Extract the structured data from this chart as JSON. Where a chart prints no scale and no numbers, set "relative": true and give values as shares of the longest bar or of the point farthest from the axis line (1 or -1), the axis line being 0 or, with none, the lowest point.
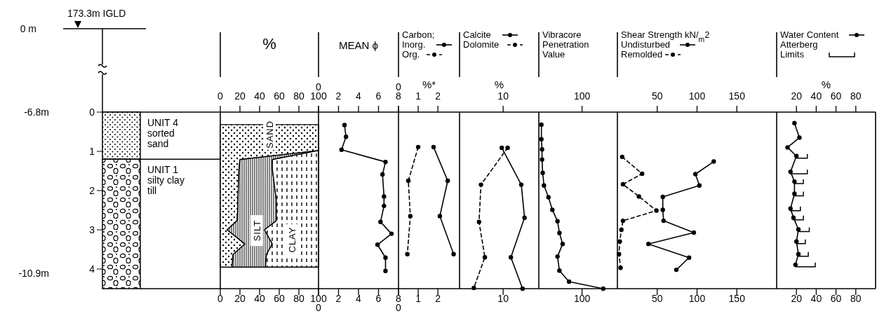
{
  "chart_data": [
    {
      "type": "bar",
      "stacked": true,
      "categories": [
        null
      ],
      "ylim": [
        4.5,
        0
      ],
      "yticks": [
        0,
        1,
        2,
        3,
        4
      ],
      "y2lim": [
        -11.3,
        -6.8
      ],
      "y2ticks": [
        {
          "value": -6.8,
          "label": "-6.8m"
        },
        {
          "value": -10.9,
          "label": "-10.9m"
        }
      ],
      "annotations": [
        "173.3m IGLD",
        "0 m"
      ],
      "series": [
        {
          "name": "UNIT 4\nsorted\nsand",
          "color": "#000000",
          "values": [
            1.2
          ]
        },
        {
          "name": "UNIT 1\nsilty clay\ntill",
          "color": "#000000",
          "values": [
            3.3
          ]
        }
      ]
    },
    {
      "type": "area",
      "stacked": true,
      "orientation": "horizontal",
      "title": "%",
      "xlim": [
        0,
        100
      ],
      "xticks": [
        0,
        20,
        40,
        60,
        80,
        100
      ],
      "x2lim": [
        0,
        100
      ],
      "x2ticks": [
        0,
        20,
        40,
        60,
        80,
        100
      ],
      "ylim": [
        4.5,
        0
      ],
      "tick_labels": "x",
      "x": [
        0.32,
        0.64,
        0.98,
        1.21,
        1.45,
        2.23,
        2.43,
        2.77,
        3.0,
        3.36,
        3.63,
        3.95
      ],
      "series": [
        {
          "name": "SAND",
          "color": "#000000",
          "values": [
            100,
            100,
            100,
            20,
            19,
            18,
            18,
            17,
            7,
            25,
            13,
            12
          ]
        },
        {
          "name": "SILT",
          "color": "#000000",
          "values": [
            0,
            0,
            0,
            33,
            34,
            39,
            39,
            40,
            38,
            28,
            34,
            34
          ]
        },
        {
          "name": "CLAY",
          "color": "#000000",
          "values": [
            0,
            0,
            0,
            47,
            47,
            43,
            43,
            43,
            55,
            47,
            53,
            54
          ]
        }
      ]
    },
    {
      "type": "line",
      "orientation": "horizontal",
      "title": "MEAN ϕ",
      "annotations": [
        "0",
        "0"
      ],
      "xlim": [
        0,
        8
      ],
      "xticks": [
        {
          "value": 0,
          "label": null
        },
        2,
        4,
        6,
        8
      ],
      "x2lim": [
        0,
        8
      ],
      "x2ticks": [
        {
          "value": 0,
          "label": null
        },
        2,
        4,
        6,
        8
      ],
      "ylim": [
        4.5,
        0
      ],
      "tick_labels": "x",
      "marker": "circle",
      "line_style": "solid",
      "x": [
        0.33,
        0.63,
        0.96,
        1.27,
        1.59,
        2.15,
        2.39,
        2.8,
        3.1,
        3.38,
        3.71,
        4.05
      ],
      "series": [
        {
          "color": "#000000",
          "values": [
            2.6,
            2.75,
            2.3,
            6.7,
            6.4,
            6.55,
            6.55,
            6.2,
            7.3,
            5.9,
            6.7,
            6.7
          ]
        }
      ]
    },
    {
      "type": "line",
      "orientation": "horizontal",
      "title": "Carbon;",
      "xlabel": "%*",
      "legend": "top",
      "annotations": [
        "0",
        "0"
      ],
      "xlim": [
        0,
        3.1
      ],
      "xticks": [
        {
          "value": 0,
          "label": null
        },
        1,
        2
      ],
      "x2lim": [
        0,
        3.1
      ],
      "x2ticks": [
        {
          "value": 0,
          "label": null
        },
        1,
        2
      ],
      "ylim": [
        4.5,
        0
      ],
      "tick_labels": "x",
      "marker": "circle",
      "x": [
        0.89,
        1.75,
        2.65,
        3.62
      ],
      "series": [
        {
          "name": "Inorg.",
          "color": "#000000",
          "line_style": "solid",
          "values": [
            1.78,
            2.5,
            2.1,
            2.8
          ]
        },
        {
          "name": "Org.",
          "color": "#000000",
          "line_style": "dashed",
          "values": [
            1.0,
            0.5,
            0.6,
            0.45
          ]
        }
      ]
    },
    {
      "type": "line",
      "orientation": "horizontal",
      "relative": true,
      "xlabel": "%",
      "legend": "top",
      "annotations": [
        "10",
        "10"
      ],
      "ylim": [
        4.5,
        0
      ],
      "marker": "circle",
      "series": [
        {
          "name": "Calcite",
          "color": "#000000",
          "line_style": "solid",
          "x": [
            0.91,
            1.85,
            2.69,
            3.7,
            4.5
          ],
          "values": [
            0.65,
            0.95,
            1,
            0.79,
            0.97
          ]
        },
        {
          "name": "Dolomite",
          "color": "#000000",
          "line_style": "dashed",
          "x": [
            0.91,
            1.85,
            2.8,
            3.7,
            4.48
          ],
          "values": [
            0.74,
            0.33,
            0.3,
            0.39,
            0.22
          ]
        }
      ]
    },
    {
      "type": "line",
      "orientation": "horizontal",
      "relative": true,
      "title": "Vibracore\nPenetration\nValue",
      "annotations": [
        "100",
        "100"
      ],
      "ylim": [
        4.5,
        0
      ],
      "marker": "circle",
      "line_style": "solid",
      "x": [
        0.32,
        0.69,
        0.95,
        1.21,
        1.55,
        1.87,
        2.17,
        2.49,
        2.78,
        3.08,
        3.36,
        3.68,
        4.04,
        4.32,
        4.5
      ],
      "series": [
        {
          "color": "#000000",
          "values": [
            0.04,
            0.04,
            0.05,
            0.05,
            0.06,
            0.08,
            0.15,
            0.21,
            0.29,
            0.32,
            0.37,
            0.29,
            0.32,
            0.47,
            1
          ]
        }
      ]
    },
    {
      "type": "line",
      "orientation": "horizontal",
      "title": "Shear Strength  kN/$_{m}$2",
      "legend": "top",
      "xlim": [
        0,
        200
      ],
      "xticks": [
        50,
        100,
        150
      ],
      "x2lim": [
        0,
        200
      ],
      "x2ticks": [
        50,
        100,
        150
      ],
      "ylim": [
        4.5,
        0
      ],
      "tick_labels": "x",
      "marker": "circle",
      "series": [
        {
          "name": "Undisturbed",
          "color": "#000000",
          "line_style": "solid",
          "x": [
            1.26,
            1.58,
            1.87,
            2.16,
            2.49,
            2.77,
            3.07,
            3.36,
            3.71,
            4.02
          ],
          "values": [
            121,
            98,
            103,
            57,
            57,
            58,
            96,
            39,
            90,
            74
          ]
        },
        {
          "name": "Remolded",
          "color": "#000000",
          "line_style": "dashed",
          "x": [
            1.14,
            1.57,
            1.84,
            2.15,
            2.51,
            2.77,
            3.0,
            3.3,
            3.62,
            3.97
          ],
          "values": [
            6,
            31,
            7,
            27,
            49,
            7,
            5,
            3,
            2,
            4
          ]
        }
      ]
    },
    {
      "type": "line",
      "orientation": "horizontal",
      "xlabel": "%",
      "legend": "top",
      "xlim": [
        0,
        100
      ],
      "xticks": [
        20,
        40,
        60,
        80
      ],
      "x2lim": [
        0,
        100
      ],
      "x2ticks": [
        20,
        40,
        60,
        80
      ],
      "ylim": [
        4.5,
        0
      ],
      "tick_labels": "x",
      "marker": "circle",
      "series": [
        {
          "name": "Water Content",
          "color": "#000000",
          "line_style": "solid",
          "x": [
            0.28,
            0.65,
            0.9,
            1.12,
            1.52,
            1.77,
            2.08,
            2.46,
            2.69,
            2.99,
            3.3,
            3.62,
            3.89
          ],
          "values": [
            18,
            23,
            11,
            20,
            14,
            18,
            18,
            14,
            17,
            22,
            20,
            22,
            19
          ]
        },
        {
          "name": "Atterberg\nLimits",
          "type": "bar",
          "color": "#000000",
          "x": [
            1.12,
            1.52,
            1.77,
            2.08,
            2.46,
            2.69,
            2.99,
            3.3,
            3.62,
            3.89
          ],
          "base": [
            20,
            14,
            18,
            18,
            14,
            17,
            22,
            20,
            22,
            19
          ],
          "values": [
            11,
            17,
            9,
            9,
            10,
            10,
            11,
            9,
            10,
            20
          ]
        }
      ]
    }
  ]
}
